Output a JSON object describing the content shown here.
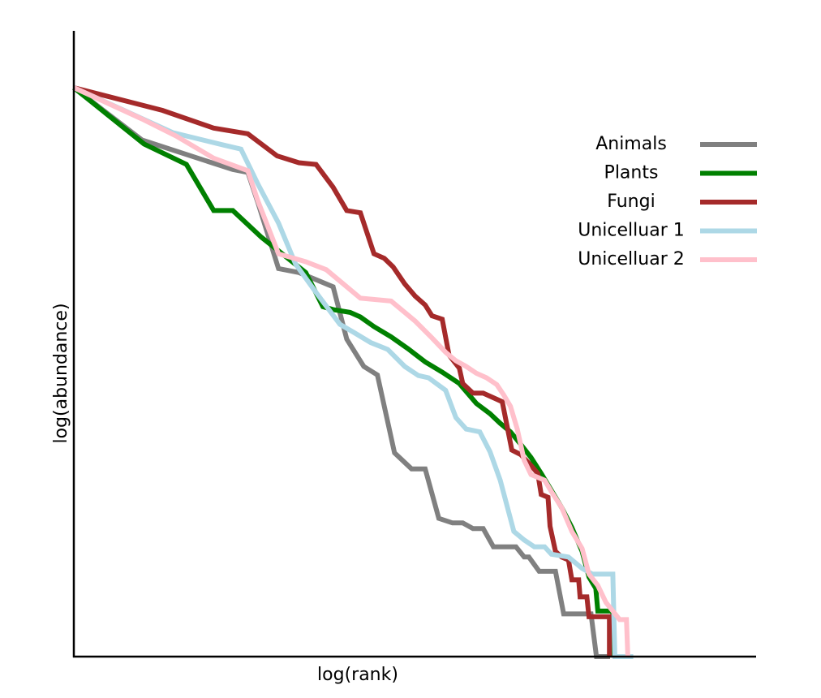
{
  "chart_data": {
    "type": "line",
    "title": "",
    "xlabel": "log(rank)",
    "ylabel": "log(abundance)",
    "xlim": [
      0,
      1
    ],
    "ylim": [
      0,
      1
    ],
    "ticks_shown": false,
    "grid": false,
    "legend_position": "top-right",
    "series": [
      {
        "name": "Animals",
        "color": "#808080",
        "points": [
          [
            0.0,
            1.0
          ],
          [
            0.1,
            0.908
          ],
          [
            0.233,
            0.856
          ],
          [
            0.255,
            0.851
          ],
          [
            0.27,
            0.797
          ],
          [
            0.3,
            0.682
          ],
          [
            0.33,
            0.675
          ],
          [
            0.38,
            0.65
          ],
          [
            0.4,
            0.558
          ],
          [
            0.425,
            0.51
          ],
          [
            0.445,
            0.495
          ],
          [
            0.47,
            0.358
          ],
          [
            0.495,
            0.33
          ],
          [
            0.515,
            0.33
          ],
          [
            0.535,
            0.243
          ],
          [
            0.555,
            0.235
          ],
          [
            0.57,
            0.235
          ],
          [
            0.585,
            0.225
          ],
          [
            0.6,
            0.225
          ],
          [
            0.615,
            0.193
          ],
          [
            0.648,
            0.193
          ],
          [
            0.66,
            0.175
          ],
          [
            0.667,
            0.175
          ],
          [
            0.682,
            0.15
          ],
          [
            0.706,
            0.15
          ],
          [
            0.718,
            0.075
          ],
          [
            0.758,
            0.075
          ],
          [
            0.766,
            0.0
          ],
          [
            0.786,
            0.0
          ]
        ]
      },
      {
        "name": "Plants",
        "color": "#008000",
        "points": [
          [
            0.0,
            1.0
          ],
          [
            0.103,
            0.901
          ],
          [
            0.165,
            0.865
          ],
          [
            0.205,
            0.784
          ],
          [
            0.233,
            0.784
          ],
          [
            0.275,
            0.737
          ],
          [
            0.34,
            0.675
          ],
          [
            0.365,
            0.615
          ],
          [
            0.38,
            0.61
          ],
          [
            0.405,
            0.605
          ],
          [
            0.42,
            0.597
          ],
          [
            0.44,
            0.58
          ],
          [
            0.465,
            0.562
          ],
          [
            0.49,
            0.541
          ],
          [
            0.515,
            0.518
          ],
          [
            0.54,
            0.5
          ],
          [
            0.565,
            0.48
          ],
          [
            0.59,
            0.445
          ],
          [
            0.61,
            0.427
          ],
          [
            0.625,
            0.41
          ],
          [
            0.64,
            0.395
          ],
          [
            0.655,
            0.373
          ],
          [
            0.67,
            0.35
          ],
          [
            0.685,
            0.322
          ],
          [
            0.7,
            0.292
          ],
          [
            0.715,
            0.262
          ],
          [
            0.73,
            0.227
          ],
          [
            0.745,
            0.185
          ],
          [
            0.755,
            0.14
          ],
          [
            0.765,
            0.12
          ],
          [
            0.768,
            0.08
          ],
          [
            0.79,
            0.08
          ],
          [
            0.79,
            0.0
          ]
        ]
      },
      {
        "name": "Fungi",
        "color": "#a52a2a",
        "points": [
          [
            0.0,
            1.0
          ],
          [
            0.13,
            0.96
          ],
          [
            0.205,
            0.929
          ],
          [
            0.255,
            0.919
          ],
          [
            0.298,
            0.88
          ],
          [
            0.33,
            0.868
          ],
          [
            0.355,
            0.865
          ],
          [
            0.38,
            0.825
          ],
          [
            0.4,
            0.784
          ],
          [
            0.42,
            0.78
          ],
          [
            0.44,
            0.708
          ],
          [
            0.455,
            0.7
          ],
          [
            0.468,
            0.685
          ],
          [
            0.485,
            0.655
          ],
          [
            0.5,
            0.634
          ],
          [
            0.515,
            0.618
          ],
          [
            0.525,
            0.599
          ],
          [
            0.54,
            0.593
          ],
          [
            0.55,
            0.53
          ],
          [
            0.565,
            0.507
          ],
          [
            0.57,
            0.48
          ],
          [
            0.585,
            0.463
          ],
          [
            0.6,
            0.463
          ],
          [
            0.628,
            0.448
          ],
          [
            0.642,
            0.363
          ],
          [
            0.655,
            0.355
          ],
          [
            0.67,
            0.336
          ],
          [
            0.68,
            0.322
          ],
          [
            0.685,
            0.285
          ],
          [
            0.695,
            0.28
          ],
          [
            0.698,
            0.229
          ],
          [
            0.706,
            0.185
          ],
          [
            0.715,
            0.175
          ],
          [
            0.725,
            0.17
          ],
          [
            0.73,
            0.135
          ],
          [
            0.74,
            0.135
          ],
          [
            0.742,
            0.105
          ],
          [
            0.752,
            0.105
          ],
          [
            0.755,
            0.07
          ],
          [
            0.785,
            0.07
          ],
          [
            0.785,
            0.0
          ]
        ]
      },
      {
        "name": "Unicelluar 1",
        "color": "#add8e6",
        "points": [
          [
            0.0,
            1.0
          ],
          [
            0.07,
            0.962
          ],
          [
            0.145,
            0.921
          ],
          [
            0.22,
            0.899
          ],
          [
            0.245,
            0.892
          ],
          [
            0.27,
            0.83
          ],
          [
            0.3,
            0.762
          ],
          [
            0.325,
            0.69
          ],
          [
            0.355,
            0.64
          ],
          [
            0.39,
            0.584
          ],
          [
            0.41,
            0.57
          ],
          [
            0.435,
            0.552
          ],
          [
            0.46,
            0.54
          ],
          [
            0.485,
            0.51
          ],
          [
            0.505,
            0.494
          ],
          [
            0.52,
            0.49
          ],
          [
            0.545,
            0.468
          ],
          [
            0.56,
            0.42
          ],
          [
            0.575,
            0.4
          ],
          [
            0.595,
            0.395
          ],
          [
            0.61,
            0.36
          ],
          [
            0.625,
            0.31
          ],
          [
            0.645,
            0.22
          ],
          [
            0.66,
            0.205
          ],
          [
            0.675,
            0.193
          ],
          [
            0.69,
            0.193
          ],
          [
            0.7,
            0.18
          ],
          [
            0.725,
            0.175
          ],
          [
            0.735,
            0.165
          ],
          [
            0.745,
            0.155
          ],
          [
            0.76,
            0.145
          ],
          [
            0.79,
            0.145
          ],
          [
            0.793,
            0.0
          ],
          [
            0.82,
            0.0
          ]
        ]
      },
      {
        "name": "Unicelluar 2",
        "color": "#ffc0cb",
        "points": [
          [
            0.0,
            1.0
          ],
          [
            0.1,
            0.945
          ],
          [
            0.15,
            0.915
          ],
          [
            0.205,
            0.876
          ],
          [
            0.255,
            0.854
          ],
          [
            0.27,
            0.8
          ],
          [
            0.3,
            0.708
          ],
          [
            0.34,
            0.694
          ],
          [
            0.37,
            0.68
          ],
          [
            0.395,
            0.655
          ],
          [
            0.42,
            0.63
          ],
          [
            0.465,
            0.625
          ],
          [
            0.5,
            0.59
          ],
          [
            0.525,
            0.56
          ],
          [
            0.545,
            0.535
          ],
          [
            0.56,
            0.52
          ],
          [
            0.575,
            0.51
          ],
          [
            0.59,
            0.498
          ],
          [
            0.605,
            0.49
          ],
          [
            0.62,
            0.478
          ],
          [
            0.63,
            0.46
          ],
          [
            0.64,
            0.44
          ],
          [
            0.65,
            0.4
          ],
          [
            0.66,
            0.345
          ],
          [
            0.67,
            0.32
          ],
          [
            0.69,
            0.31
          ],
          [
            0.7,
            0.29
          ],
          [
            0.715,
            0.262
          ],
          [
            0.73,
            0.22
          ],
          [
            0.745,
            0.19
          ],
          [
            0.755,
            0.145
          ],
          [
            0.768,
            0.125
          ],
          [
            0.78,
            0.095
          ],
          [
            0.8,
            0.065
          ],
          [
            0.81,
            0.065
          ],
          [
            0.812,
            0.0
          ]
        ]
      }
    ]
  }
}
